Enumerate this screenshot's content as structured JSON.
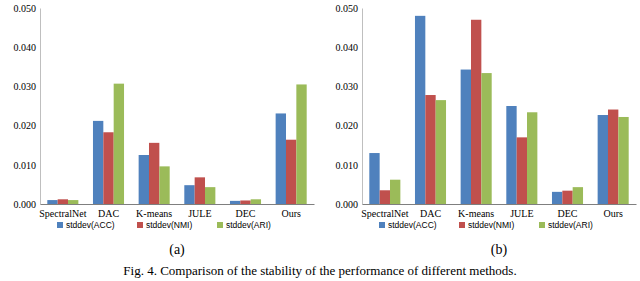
{
  "chart_data": [
    {
      "type": "bar",
      "title": "(a)",
      "categories": [
        "SpectralNet",
        "DAC",
        "K-means",
        "JULE",
        "DEC",
        "Ours"
      ],
      "series": [
        {
          "name": "stddev(ACC)",
          "color": "#4f81bd",
          "values": [
            0.001,
            0.0212,
            0.0125,
            0.0048,
            0.0008,
            0.0231
          ]
        },
        {
          "name": "stddev(NMI)",
          "color": "#c0504d",
          "values": [
            0.0012,
            0.0183,
            0.0156,
            0.0068,
            0.0009,
            0.0164
          ]
        },
        {
          "name": "stddev(ARI)",
          "color": "#9bbb59",
          "values": [
            0.001,
            0.0307,
            0.0096,
            0.0043,
            0.0012,
            0.0305
          ]
        }
      ],
      "ylim": [
        0,
        0.05
      ],
      "yticks": [
        {
          "value": 0,
          "label": "0.000"
        },
        {
          "value": 0.01,
          "label": "0.010"
        },
        {
          "value": 0.02,
          "label": "0.020"
        },
        {
          "value": 0.03,
          "label": "0.030"
        },
        {
          "value": 0.04,
          "label": "0.040"
        },
        {
          "value": 0.05,
          "label": "0.050"
        }
      ],
      "grid": false,
      "legend": "bottom"
    },
    {
      "type": "bar",
      "title": "(b)",
      "categories": [
        "SpectralNet",
        "DAC",
        "K-means",
        "JULE",
        "DEC",
        "Ours"
      ],
      "series": [
        {
          "name": "stddev(ACC)",
          "color": "#4f81bd",
          "values": [
            0.013,
            0.048,
            0.0343,
            0.025,
            0.0031,
            0.0227
          ]
        },
        {
          "name": "stddev(NMI)",
          "color": "#c0504d",
          "values": [
            0.0035,
            0.0278,
            0.047,
            0.017,
            0.0034,
            0.0241
          ]
        },
        {
          "name": "stddev(ARI)",
          "color": "#9bbb59",
          "values": [
            0.0062,
            0.0265,
            0.0334,
            0.0234,
            0.0043,
            0.0222
          ]
        }
      ],
      "ylim": [
        0,
        0.05
      ],
      "yticks": [
        {
          "value": 0,
          "label": "0.000"
        },
        {
          "value": 0.01,
          "label": "0.010"
        },
        {
          "value": 0.02,
          "label": "0.020"
        },
        {
          "value": 0.03,
          "label": "0.030"
        },
        {
          "value": 0.04,
          "label": "0.040"
        },
        {
          "value": 0.05,
          "label": "0.050"
        }
      ],
      "grid": false,
      "legend": "bottom"
    }
  ],
  "caption": "Fig. 4. Comparison of the stability of the performance of different methods."
}
